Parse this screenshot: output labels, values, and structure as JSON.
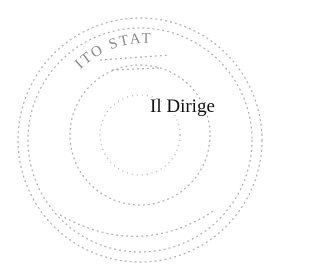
{
  "stamp": {
    "text": "ITO STAT"
  },
  "signature": {
    "label": "Il Dirige"
  }
}
